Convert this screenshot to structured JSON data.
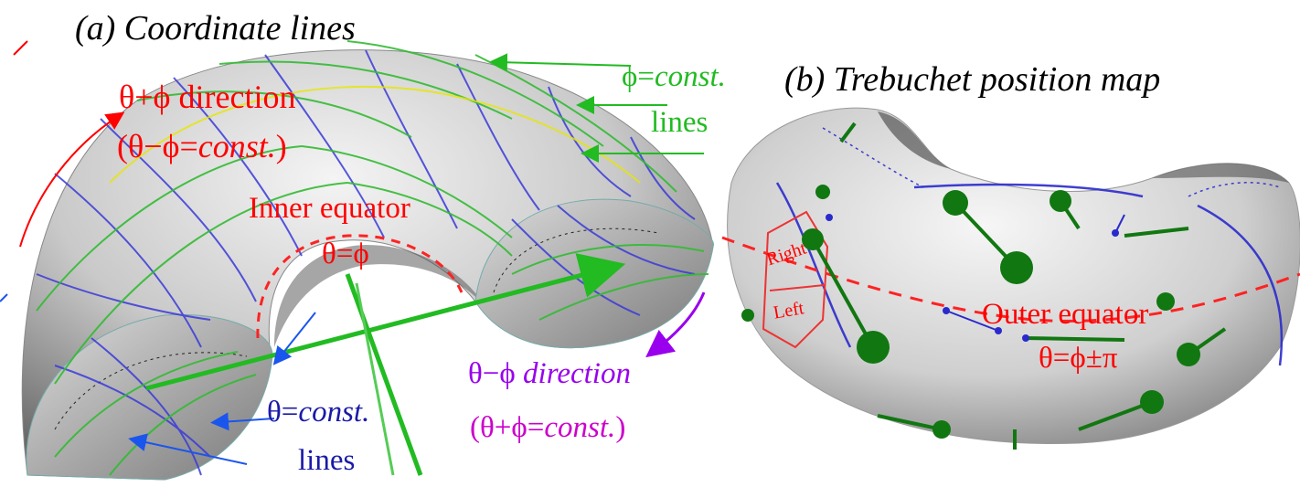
{
  "panels": {
    "a_title": "(a) Coordinate lines",
    "b_title": "(b) Trebuchet position map"
  },
  "labels_a": {
    "theta_plus_phi_dir": "θ+ϕ direction",
    "theta_minus_phi_const_open": "(θ−ϕ=",
    "const_word": "const.",
    "close_paren": ")",
    "phi_const_prefix": "ϕ=",
    "phi_const_lines": "lines",
    "inner_equator": "Inner equator",
    "inner_equator_eq": "θ=ϕ",
    "theta_const_prefix": "θ=",
    "theta_const_lines": "lines",
    "theta_minus_phi_dir_prefix": "θ−ϕ ",
    "direction_word": "direction",
    "theta_plus_phi_const_open": "(θ+ϕ="
  },
  "labels_b": {
    "outer_equator": "Outer equator",
    "outer_equator_eq": "θ=ϕ±π",
    "hex_right": "Right",
    "hex_left": "Left"
  },
  "colors": {
    "red": "#ff0000",
    "green": "#22bb22",
    "blue": "#1a1aa8",
    "purple": "#9900ee",
    "magenta": "#cc00cc",
    "dark_green": "#117711",
    "surface_light": "#f2f2f2",
    "surface_dark": "#6e6e6e"
  }
}
